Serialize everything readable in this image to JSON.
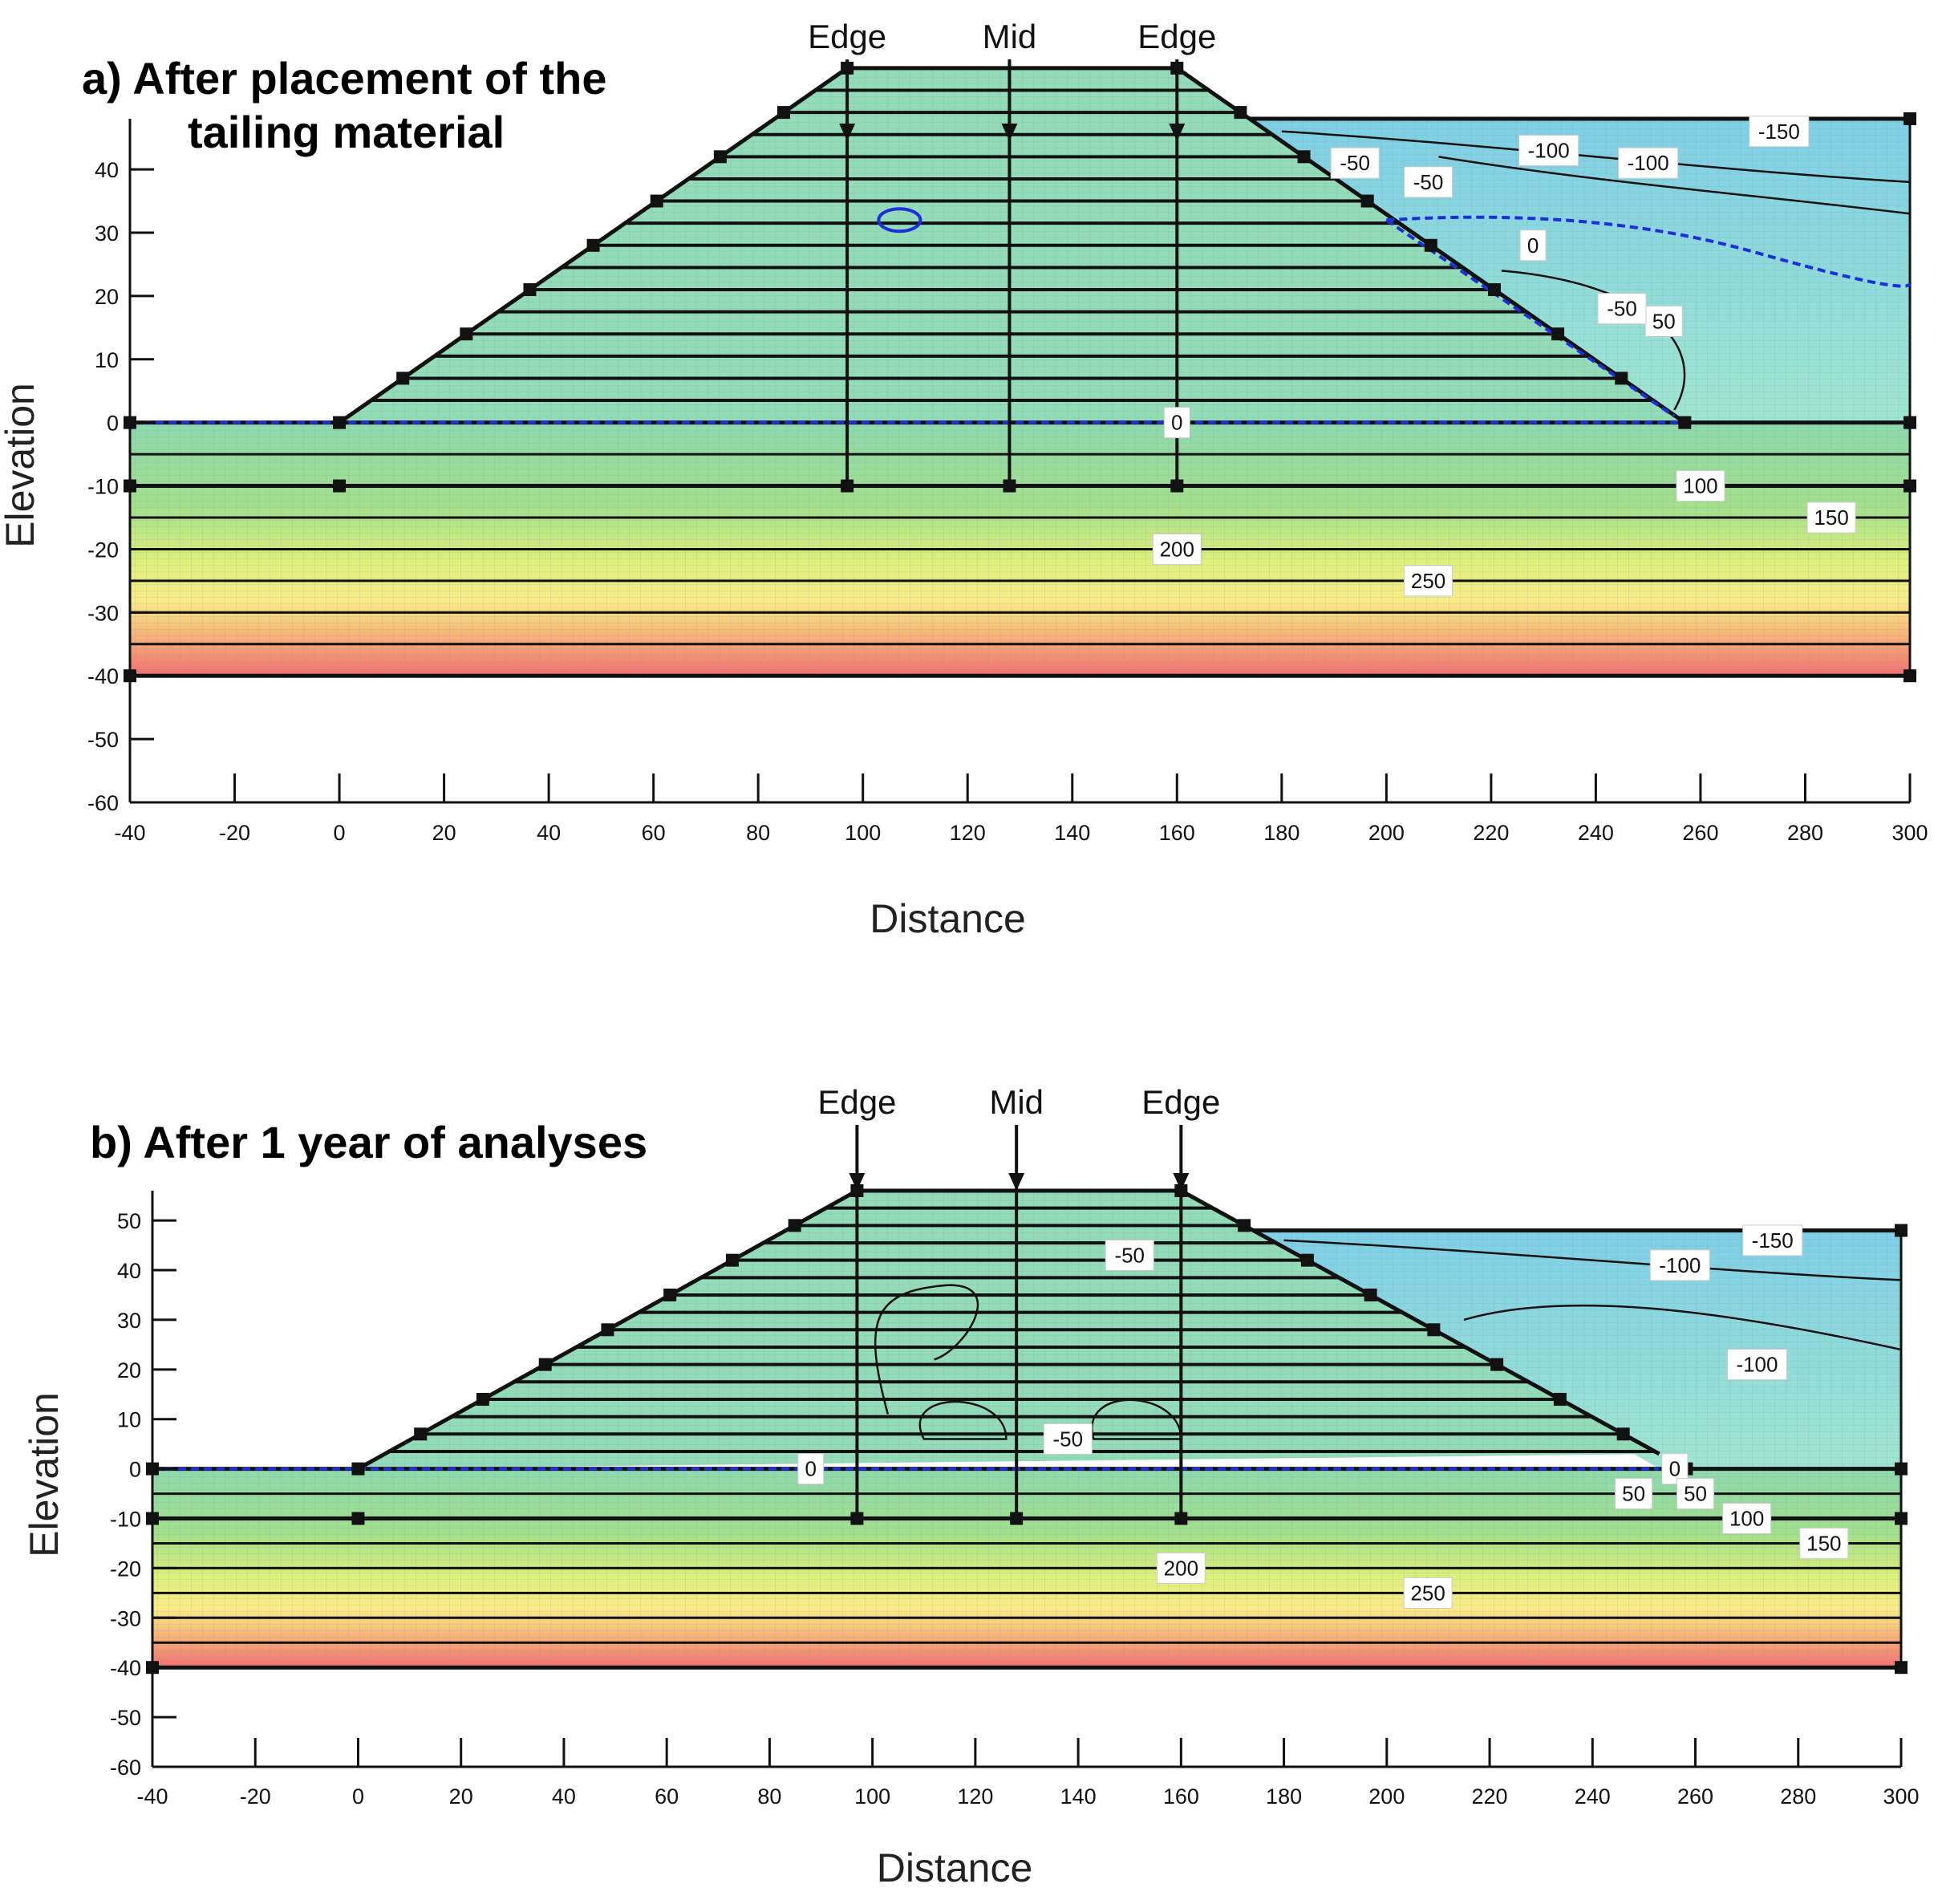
{
  "panels": [
    {
      "title_line1": "a) After placement of the",
      "title_line2": "tailing material"
    },
    {
      "title_line1": "b) After 1 year of analyses",
      "title_line2": ""
    }
  ],
  "chart_data": [
    {
      "type": "contour",
      "title": "a) After placement of the tailing material",
      "xlabel": "Distance",
      "ylabel": "Elevation",
      "xlim": [
        -40,
        300
      ],
      "ylim": [
        -60,
        48
      ],
      "xticks": [
        -40,
        -20,
        0,
        20,
        40,
        60,
        80,
        100,
        120,
        140,
        160,
        180,
        200,
        220,
        240,
        260,
        280,
        300
      ],
      "yticks": [
        40,
        30,
        20,
        10,
        0,
        -10,
        -20,
        -30,
        -40,
        -50,
        -60
      ],
      "dam_crest_elevation": 56,
      "dam_profile": [
        [
          0,
          0
        ],
        [
          97,
          56
        ],
        [
          160,
          56
        ],
        [
          257,
          0
        ]
      ],
      "tailings_surface_elevation": 48,
      "tailings_start_x": 177,
      "foundation_bottom": -40,
      "markers": [
        {
          "label": "Edge",
          "x": 97
        },
        {
          "label": "Mid",
          "x": 128
        },
        {
          "label": "Edge",
          "x": 160
        }
      ],
      "contour_labels": [
        {
          "text": "-150",
          "x": 275,
          "y": 46
        },
        {
          "text": "-100",
          "x": 231,
          "y": 43
        },
        {
          "text": "-100",
          "x": 250,
          "y": 41
        },
        {
          "text": "-50",
          "x": 194,
          "y": 41
        },
        {
          "text": "-50",
          "x": 208,
          "y": 38
        },
        {
          "text": "0",
          "x": 228,
          "y": 28
        },
        {
          "text": "50",
          "x": 253,
          "y": 16
        },
        {
          "text": "-50",
          "x": 245,
          "y": 18
        },
        {
          "text": "0",
          "x": 160,
          "y": 0
        },
        {
          "text": "100",
          "x": 260,
          "y": -10
        },
        {
          "text": "150",
          "x": 285,
          "y": -15
        },
        {
          "text": "200",
          "x": 160,
          "y": -20
        },
        {
          "text": "250",
          "x": 208,
          "y": -25
        }
      ]
    },
    {
      "type": "contour",
      "title": "b) After 1 year of analyses",
      "xlabel": "Distance",
      "ylabel": "Elevation",
      "xlim": [
        -40,
        300
      ],
      "ylim": [
        -60,
        56
      ],
      "xticks": [
        -40,
        -20,
        0,
        20,
        40,
        60,
        80,
        100,
        120,
        140,
        160,
        180,
        200,
        220,
        240,
        260,
        280,
        300
      ],
      "yticks": [
        50,
        40,
        30,
        20,
        10,
        0,
        -10,
        -20,
        -30,
        -40,
        -50,
        -60
      ],
      "dam_crest_elevation": 56,
      "dam_profile": [
        [
          0,
          0
        ],
        [
          97,
          56
        ],
        [
          160,
          56
        ],
        [
          253,
          3
        ]
      ],
      "tailings_surface_elevation": 48,
      "tailings_start_x": 177,
      "foundation_bottom": -40,
      "markers": [
        {
          "label": "Edge",
          "x": 97
        },
        {
          "label": "Mid",
          "x": 128
        },
        {
          "label": "Edge",
          "x": 160
        }
      ],
      "contour_labels": [
        {
          "text": "-150",
          "x": 275,
          "y": 46
        },
        {
          "text": "-50",
          "x": 150,
          "y": 43
        },
        {
          "text": "-100",
          "x": 257,
          "y": 41
        },
        {
          "text": "-100",
          "x": 272,
          "y": 21
        },
        {
          "text": "-50",
          "x": 138,
          "y": 6
        },
        {
          "text": "0",
          "x": 88,
          "y": 0
        },
        {
          "text": "0",
          "x": 256,
          "y": 0
        },
        {
          "text": "50",
          "x": 248,
          "y": -5
        },
        {
          "text": "50",
          "x": 260,
          "y": -5
        },
        {
          "text": "100",
          "x": 270,
          "y": -10
        },
        {
          "text": "150",
          "x": 285,
          "y": -15
        },
        {
          "text": "200",
          "x": 160,
          "y": -20
        },
        {
          "text": "250",
          "x": 208,
          "y": -25
        }
      ]
    }
  ]
}
